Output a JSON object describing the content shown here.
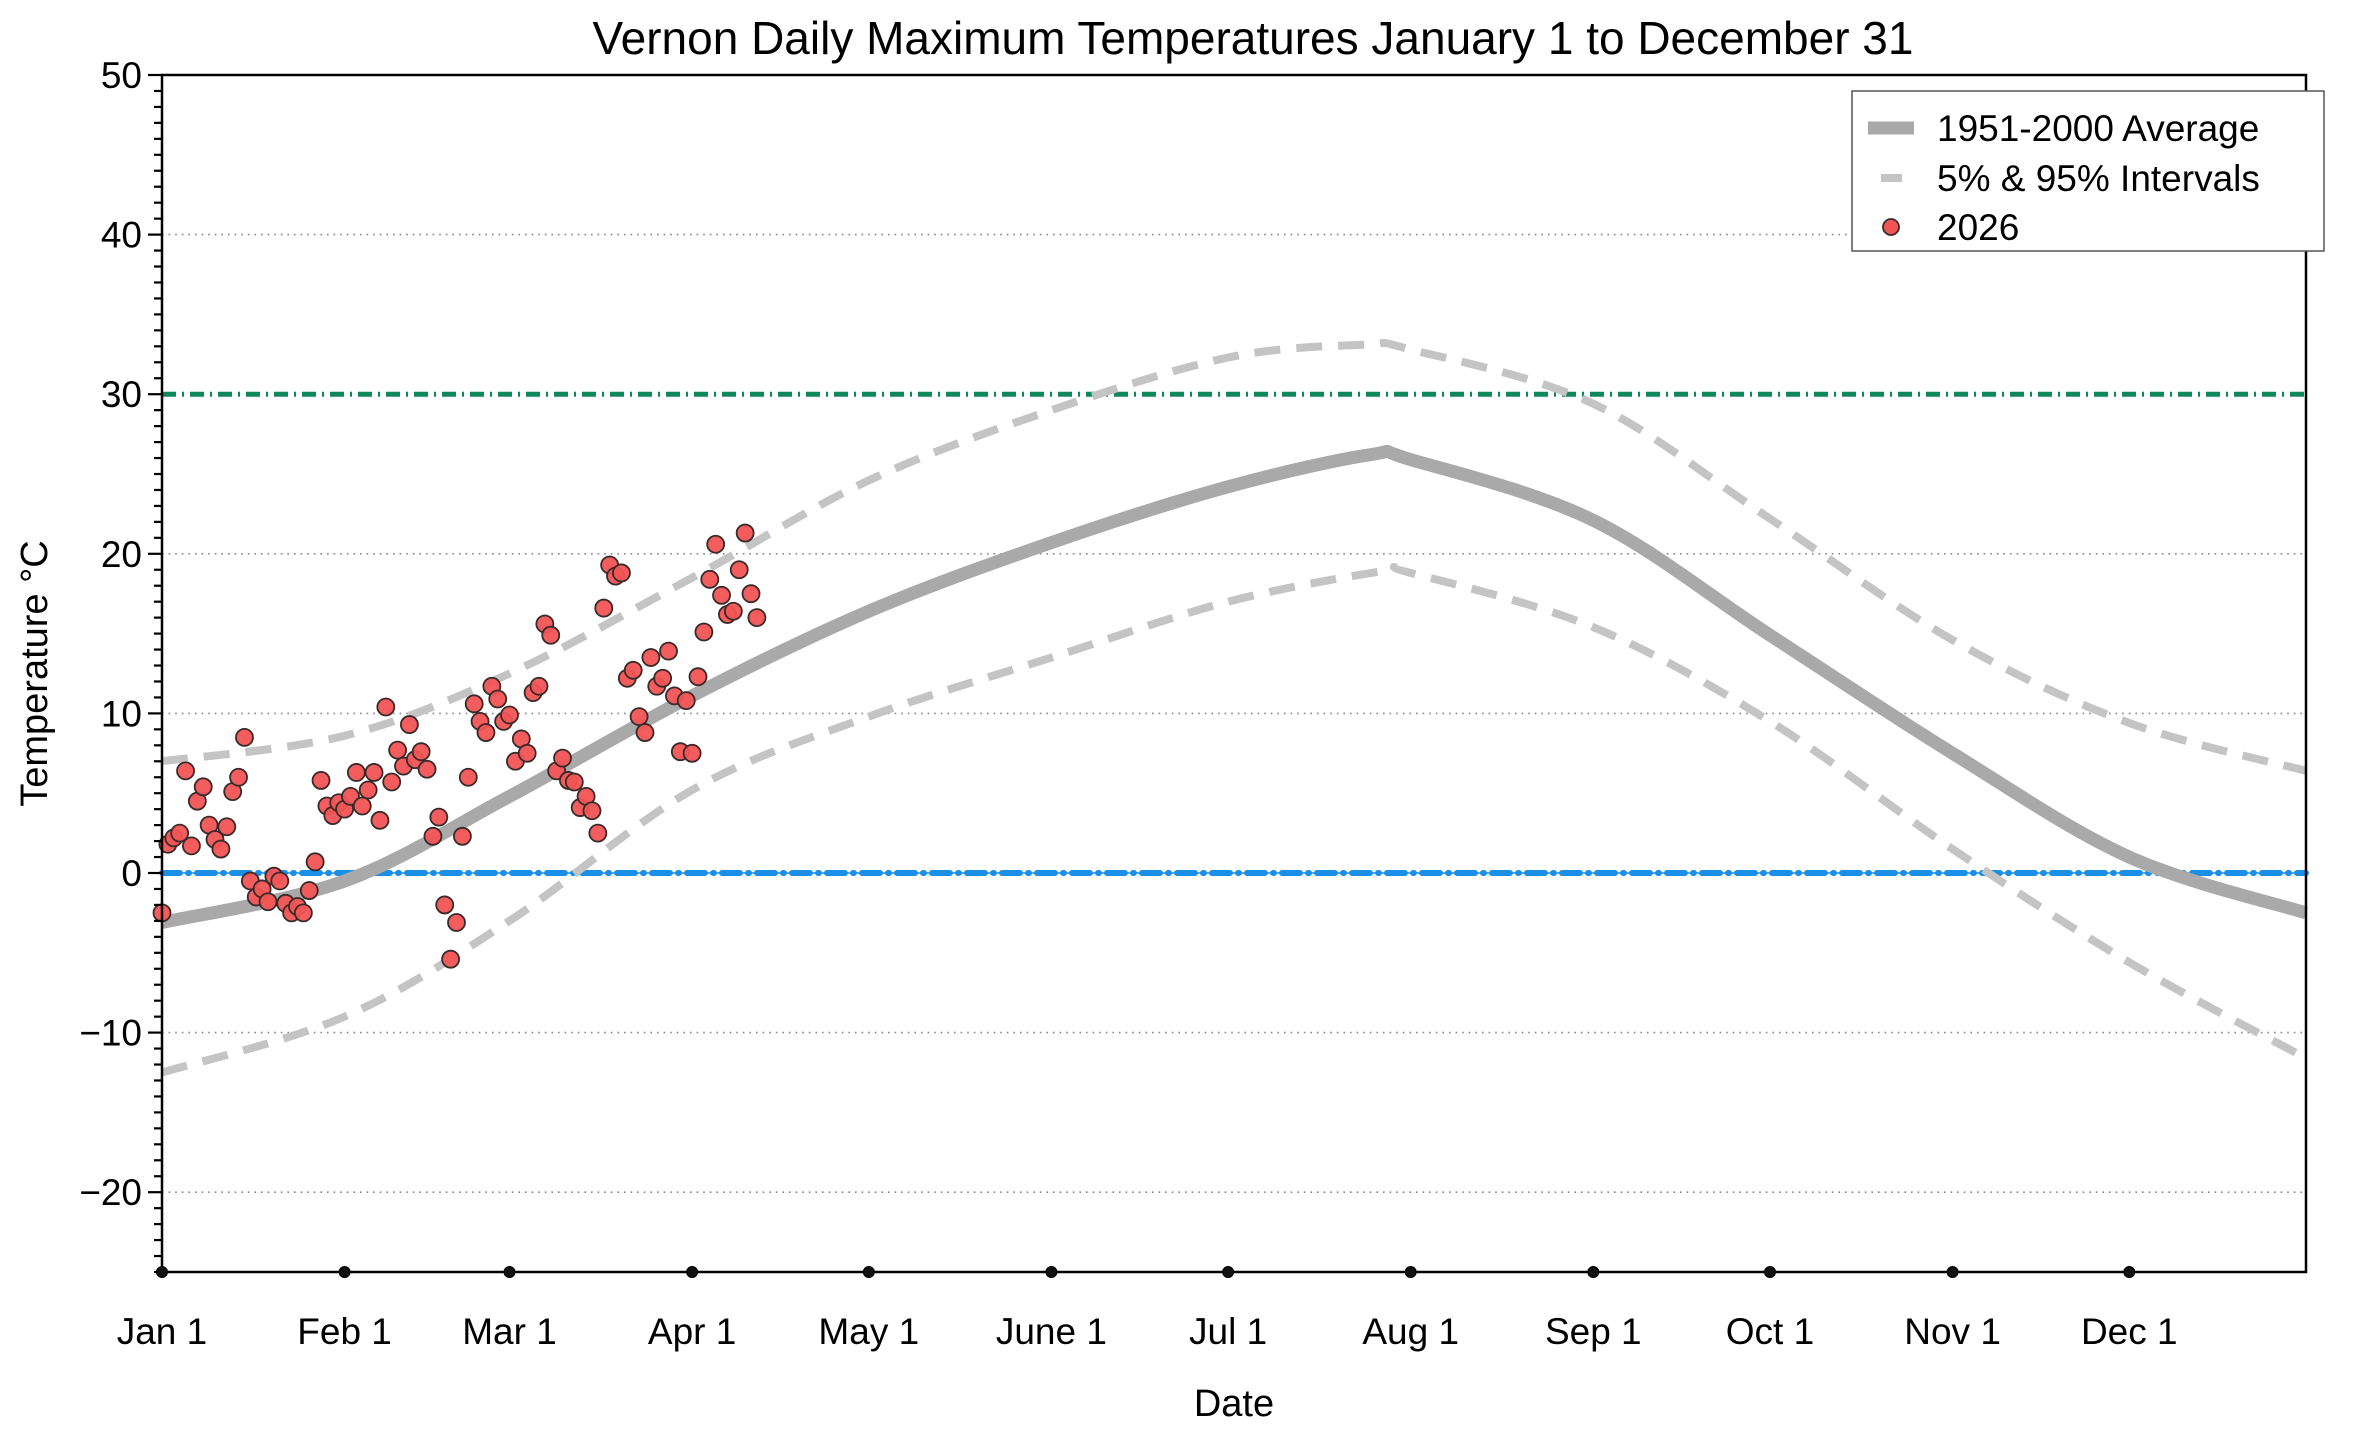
{
  "chart_data": {
    "type": "scatter",
    "title": "Vernon Daily Maximum Temperatures January 1 to December 31",
    "xlabel": "Date",
    "ylabel": "Temperature °C",
    "xlim_days": [
      0,
      364
    ],
    "ylim": [
      -25,
      50
    ],
    "y_major_ticks": [
      -20,
      -10,
      0,
      10,
      20,
      30,
      40,
      50
    ],
    "y_minor_tick_step": 1,
    "y_gridlines": [
      -20,
      -10,
      10,
      20,
      40
    ],
    "x_ticks": [
      {
        "label": "Jan 1",
        "day": 0
      },
      {
        "label": "Feb 1",
        "day": 31
      },
      {
        "label": "Mar 1",
        "day": 59
      },
      {
        "label": "Apr 1",
        "day": 90
      },
      {
        "label": "May 1",
        "day": 120
      },
      {
        "label": "June 1",
        "day": 151
      },
      {
        "label": "Jul 1",
        "day": 181
      },
      {
        "label": "Aug 1",
        "day": 212
      },
      {
        "label": "Sep 1",
        "day": 243
      },
      {
        "label": "Oct 1",
        "day": 273
      },
      {
        "label": "Nov 1",
        "day": 304
      },
      {
        "label": "Dec 1",
        "day": 334
      }
    ],
    "reference_lines": [
      {
        "name": "30C threshold",
        "y": 30,
        "color": "#10875a",
        "style": "dash-dot"
      },
      {
        "name": "0C freezing",
        "y": 0,
        "color": "#1a8fe8",
        "style": "dash-dot"
      }
    ],
    "legend": {
      "position": "top-right",
      "entries": [
        {
          "label": "1951-2000 Average",
          "kind": "thick-line",
          "color": "#a9a9a9"
        },
        {
          "label": "5% & 95% Intervals",
          "kind": "dashed-line",
          "color": "#c4c4c4"
        },
        {
          "label": "2026",
          "kind": "marker",
          "color": "#f25454"
        }
      ]
    },
    "series": [
      {
        "name": "1951-2000 Average",
        "type": "line",
        "color": "#a9a9a9",
        "points": [
          [
            0,
            -3.1
          ],
          [
            31,
            -0.5
          ],
          [
            59,
            4.8
          ],
          [
            90,
            11.1
          ],
          [
            120,
            16.4
          ],
          [
            151,
            20.7
          ],
          [
            181,
            24.2
          ],
          [
            205,
            26.2
          ],
          [
            212,
            25.9
          ],
          [
            243,
            22.1
          ],
          [
            273,
            14.9
          ],
          [
            304,
            7.5
          ],
          [
            334,
            1.0
          ],
          [
            364,
            -2.5
          ]
        ]
      },
      {
        "name": "95% Interval",
        "type": "line",
        "style": "dashed",
        "color": "#c4c4c4",
        "points": [
          [
            0,
            7.0
          ],
          [
            31,
            8.6
          ],
          [
            59,
            12.5
          ],
          [
            90,
            18.5
          ],
          [
            120,
            24.6
          ],
          [
            151,
            29.0
          ],
          [
            181,
            32.3
          ],
          [
            204,
            33.1
          ],
          [
            212,
            32.8
          ],
          [
            243,
            29.4
          ],
          [
            273,
            22.2
          ],
          [
            304,
            14.6
          ],
          [
            334,
            9.4
          ],
          [
            364,
            6.4
          ]
        ]
      },
      {
        "name": "5% Interval",
        "type": "line",
        "style": "dashed",
        "color": "#c4c4c4",
        "points": [
          [
            0,
            -12.5
          ],
          [
            31,
            -9.0
          ],
          [
            59,
            -3.0
          ],
          [
            90,
            5.2
          ],
          [
            120,
            9.8
          ],
          [
            151,
            13.5
          ],
          [
            181,
            17.0
          ],
          [
            207,
            18.9
          ],
          [
            212,
            18.8
          ],
          [
            243,
            15.4
          ],
          [
            273,
            9.5
          ],
          [
            304,
            1.5
          ],
          [
            334,
            -5.6
          ],
          [
            364,
            -11.6
          ]
        ]
      },
      {
        "name": "2026",
        "type": "scatter",
        "color": "#f25454",
        "points": [
          [
            0,
            -2.5
          ],
          [
            1,
            1.8
          ],
          [
            2,
            2.2
          ],
          [
            3,
            2.5
          ],
          [
            4,
            6.4
          ],
          [
            5,
            1.7
          ],
          [
            6,
            4.5
          ],
          [
            7,
            5.4
          ],
          [
            8,
            3.0
          ],
          [
            9,
            2.1
          ],
          [
            10,
            1.5
          ],
          [
            11,
            2.9
          ],
          [
            12,
            5.1
          ],
          [
            13,
            6.0
          ],
          [
            14,
            8.5
          ],
          [
            15,
            -0.5
          ],
          [
            16,
            -1.5
          ],
          [
            17,
            -1.0
          ],
          [
            18,
            -1.8
          ],
          [
            19,
            -0.2
          ],
          [
            20,
            -0.5
          ],
          [
            21,
            -1.9
          ],
          [
            22,
            -2.5
          ],
          [
            23,
            -2.1
          ],
          [
            24,
            -2.5
          ],
          [
            25,
            -1.1
          ],
          [
            26,
            0.7
          ],
          [
            27,
            5.8
          ],
          [
            28,
            4.2
          ],
          [
            29,
            3.6
          ],
          [
            30,
            4.4
          ],
          [
            31,
            4.0
          ],
          [
            32,
            4.8
          ],
          [
            33,
            6.3
          ],
          [
            34,
            4.2
          ],
          [
            35,
            5.2
          ],
          [
            36,
            6.3
          ],
          [
            37,
            3.3
          ],
          [
            38,
            10.4
          ],
          [
            39,
            5.7
          ],
          [
            40,
            7.7
          ],
          [
            41,
            6.7
          ],
          [
            42,
            9.3
          ],
          [
            43,
            7.1
          ],
          [
            44,
            7.6
          ],
          [
            45,
            6.5
          ],
          [
            46,
            2.3
          ],
          [
            47,
            3.5
          ],
          [
            48,
            -2.0
          ],
          [
            49,
            -5.4
          ],
          [
            50,
            -3.1
          ],
          [
            51,
            2.3
          ],
          [
            52,
            6.0
          ],
          [
            53,
            10.6
          ],
          [
            54,
            9.5
          ],
          [
            55,
            8.8
          ],
          [
            56,
            11.7
          ],
          [
            57,
            10.9
          ],
          [
            58,
            9.5
          ],
          [
            59,
            9.9
          ],
          [
            60,
            7.0
          ],
          [
            61,
            8.4
          ],
          [
            62,
            7.5
          ],
          [
            63,
            11.3
          ],
          [
            64,
            11.7
          ],
          [
            65,
            15.6
          ],
          [
            66,
            14.9
          ],
          [
            67,
            6.4
          ],
          [
            68,
            7.2
          ],
          [
            69,
            5.8
          ],
          [
            70,
            5.7
          ],
          [
            71,
            4.1
          ],
          [
            72,
            4.8
          ],
          [
            73,
            3.9
          ],
          [
            74,
            2.5
          ],
          [
            75,
            16.6
          ],
          [
            76,
            19.3
          ],
          [
            77,
            18.6
          ],
          [
            78,
            18.8
          ],
          [
            79,
            12.2
          ],
          [
            80,
            12.7
          ],
          [
            81,
            9.8
          ],
          [
            82,
            8.8
          ],
          [
            83,
            13.5
          ],
          [
            84,
            11.7
          ],
          [
            85,
            12.2
          ],
          [
            86,
            13.9
          ],
          [
            87,
            11.1
          ],
          [
            88,
            7.6
          ],
          [
            89,
            10.8
          ],
          [
            90,
            7.5
          ],
          [
            91,
            12.3
          ],
          [
            92,
            15.1
          ],
          [
            93,
            18.4
          ],
          [
            94,
            20.6
          ],
          [
            95,
            17.4
          ],
          [
            96,
            16.2
          ],
          [
            97,
            16.4
          ],
          [
            98,
            19.0
          ],
          [
            99,
            21.3
          ],
          [
            100,
            17.5
          ],
          [
            101,
            16.0
          ]
        ]
      }
    ]
  }
}
